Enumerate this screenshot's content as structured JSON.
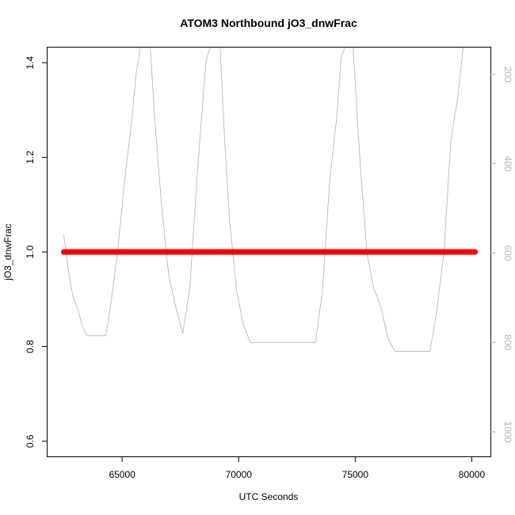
{
  "chart_data": {
    "type": "scatter",
    "title": "ATOM3 Northbound jO3_dnwFrac",
    "xlabel": "UTC Seconds",
    "ylabel": "jO3_dnwFrac",
    "xlim": [
      61800,
      80800
    ],
    "ylim": [
      0.568,
      1.432
    ],
    "x_ticks": [
      65000,
      70000,
      75000,
      80000
    ],
    "x_tick_labels": [
      "65000",
      "70000",
      "75000",
      "80000"
    ],
    "y_ticks": [
      0.6,
      0.8,
      1.0,
      1.2,
      1.4
    ],
    "y_tick_labels": [
      "0.6",
      "0.8",
      "1.0",
      "1.2",
      "1.4"
    ],
    "secondary_axis": {
      "ylim": [
        1055,
        140
      ],
      "reversed": true,
      "ticks": [
        200,
        400,
        600,
        800,
        1000
      ],
      "tick_labels": [
        "200",
        "400",
        "600",
        "800",
        "1000"
      ],
      "color": "#bebebe"
    },
    "series": [
      {
        "type": "scatter",
        "color": "#ff0000",
        "x_start": 62500,
        "x_end": 80150,
        "y": 1.0
      },
      {
        "type": "line",
        "axis": "secondary",
        "color": "#bebebe",
        "points": [
          [
            62500,
            560
          ],
          [
            62700,
            640
          ],
          [
            62900,
            700
          ],
          [
            63100,
            725
          ],
          [
            63300,
            765
          ],
          [
            63500,
            785
          ],
          [
            63800,
            785
          ],
          [
            64100,
            785
          ],
          [
            64300,
            785
          ],
          [
            64500,
            720
          ],
          [
            64800,
            600
          ],
          [
            65100,
            440
          ],
          [
            65400,
            310
          ],
          [
            65600,
            200
          ],
          [
            65800,
            135
          ],
          [
            66200,
            135
          ],
          [
            66400,
            300
          ],
          [
            66700,
            500
          ],
          [
            67000,
            650
          ],
          [
            67300,
            720
          ],
          [
            67600,
            780
          ],
          [
            67900,
            680
          ],
          [
            68200,
            440
          ],
          [
            68400,
            300
          ],
          [
            68600,
            170
          ],
          [
            68800,
            135
          ],
          [
            69200,
            135
          ],
          [
            69400,
            350
          ],
          [
            69600,
            520
          ],
          [
            69900,
            680
          ],
          [
            70200,
            760
          ],
          [
            70500,
            800
          ],
          [
            71000,
            800
          ],
          [
            71500,
            800
          ],
          [
            72000,
            800
          ],
          [
            72500,
            800
          ],
          [
            73000,
            800
          ],
          [
            73300,
            800
          ],
          [
            73600,
            680
          ],
          [
            73900,
            440
          ],
          [
            74200,
            300
          ],
          [
            74400,
            160
          ],
          [
            74600,
            135
          ],
          [
            74900,
            135
          ],
          [
            75200,
            390
          ],
          [
            75500,
            600
          ],
          [
            75800,
            680
          ],
          [
            76100,
            720
          ],
          [
            76400,
            790
          ],
          [
            76700,
            820
          ],
          [
            77000,
            820
          ],
          [
            77500,
            820
          ],
          [
            78000,
            820
          ],
          [
            78200,
            820
          ],
          [
            78500,
            730
          ],
          [
            78800,
            600
          ],
          [
            79100,
            350
          ],
          [
            79400,
            250
          ],
          [
            79650,
            130
          ]
        ]
      }
    ]
  }
}
